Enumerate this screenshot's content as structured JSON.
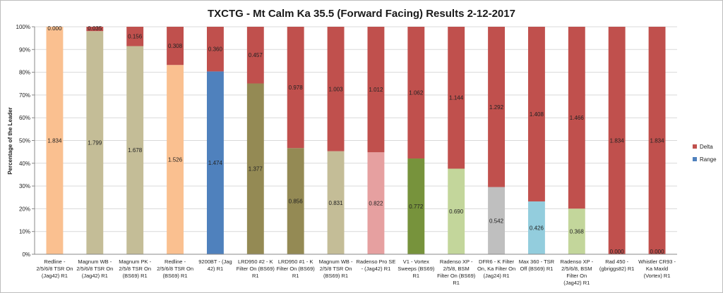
{
  "chart_data": {
    "type": "bar",
    "stacked": true,
    "title": "TXCTG - Mt Calm Ka 35.5 (Forward Facing) Results 2-12-2017",
    "ylabel": "Percentage of the Leader",
    "xlabel": "",
    "ylim": [
      0,
      100
    ],
    "yticks": [
      "0%",
      "10%",
      "20%",
      "30%",
      "40%",
      "50%",
      "60%",
      "70%",
      "80%",
      "90%",
      "100%"
    ],
    "grid": true,
    "legend_position": "right",
    "leader": 1.834,
    "categories": [
      [
        "Redline -",
        "2/5/6/8 TSR On",
        "(Jag42) R1"
      ],
      [
        "Magnum WB -",
        "2/5/6/8 TSR On",
        "(Jag42) R1"
      ],
      [
        "Magnum PK -",
        "2/5/8 TSR On",
        "(BS69) R1"
      ],
      [
        "Redline -",
        "2/5/6/8 TSR On",
        "(BS69) R1"
      ],
      [
        "9200BT - (Jag",
        "42) R1"
      ],
      [
        "LRD950 #2 - K",
        "Filter On (BS69)",
        "R1"
      ],
      [
        "LRD950 #1 - K",
        "Filter On (BS69)",
        "R1"
      ],
      [
        "Magnum WB -",
        "2/5/8 TSR On",
        "(BS69) R1"
      ],
      [
        "Radenso Pro SE",
        "- (Jag42) R1"
      ],
      [
        "V1 - Vortex",
        "Sweeps (BS69)",
        "R1"
      ],
      [
        "Radenso XP -",
        "2/5/8, BSM",
        "Filter On (BS69)",
        "R1"
      ],
      [
        "DFR6 - K Filter",
        "On, Ka Filter On",
        "(Jag24) R1"
      ],
      [
        "Max 360 - TSR",
        "Off (BS69) R1"
      ],
      [
        "Radenso XP -",
        "2/5/6/8, BSM",
        "Filter On",
        "(Jag42) R1"
      ],
      [
        "Rad 450 -",
        "(gbriggs82) R1"
      ],
      [
        "Whistler CR93 -",
        "Ka Maxld",
        "(Vortex) R1"
      ]
    ],
    "series": [
      {
        "name": "Range",
        "values": [
          1.834,
          1.799,
          1.678,
          1.526,
          1.474,
          1.377,
          0.856,
          0.831,
          0.822,
          0.772,
          0.69,
          0.542,
          0.426,
          0.368,
          0.0,
          0.0
        ],
        "labels": [
          "1.834",
          "1.799",
          "1.678",
          "1.526",
          "1.474",
          "1.377",
          "0.856",
          "0.831",
          "0.822",
          "0.772",
          "0.690",
          "0.542",
          "0.426",
          "0.368",
          "0.000",
          "0.000"
        ],
        "colors": [
          "#fac090",
          "#c4bd97",
          "#c4bd97",
          "#fac090",
          "#4f81bd",
          "#948a54",
          "#948a54",
          "#c4bd97",
          "#e6a0a0",
          "#77933c",
          "#c3d69b",
          "#bfbfbf",
          "#93cddd",
          "#c3d69b",
          "#4f81bd",
          "#4f81bd"
        ],
        "legend_color": "#4f81bd"
      },
      {
        "name": "Delta",
        "values": [
          0.0,
          0.035,
          0.156,
          0.308,
          0.36,
          0.457,
          0.978,
          1.003,
          1.012,
          1.062,
          1.144,
          1.292,
          1.408,
          1.466,
          1.834,
          1.834
        ],
        "labels": [
          "0.000",
          "0.035",
          "0.156",
          "0.308",
          "0.360",
          "0.457",
          "0.978",
          "1.003",
          "1.012",
          "1.062",
          "1.144",
          "1.292",
          "1.408",
          "1.466",
          "1.834",
          "1.834"
        ],
        "color": "#c0504d",
        "legend_color": "#c0504d"
      }
    ]
  }
}
